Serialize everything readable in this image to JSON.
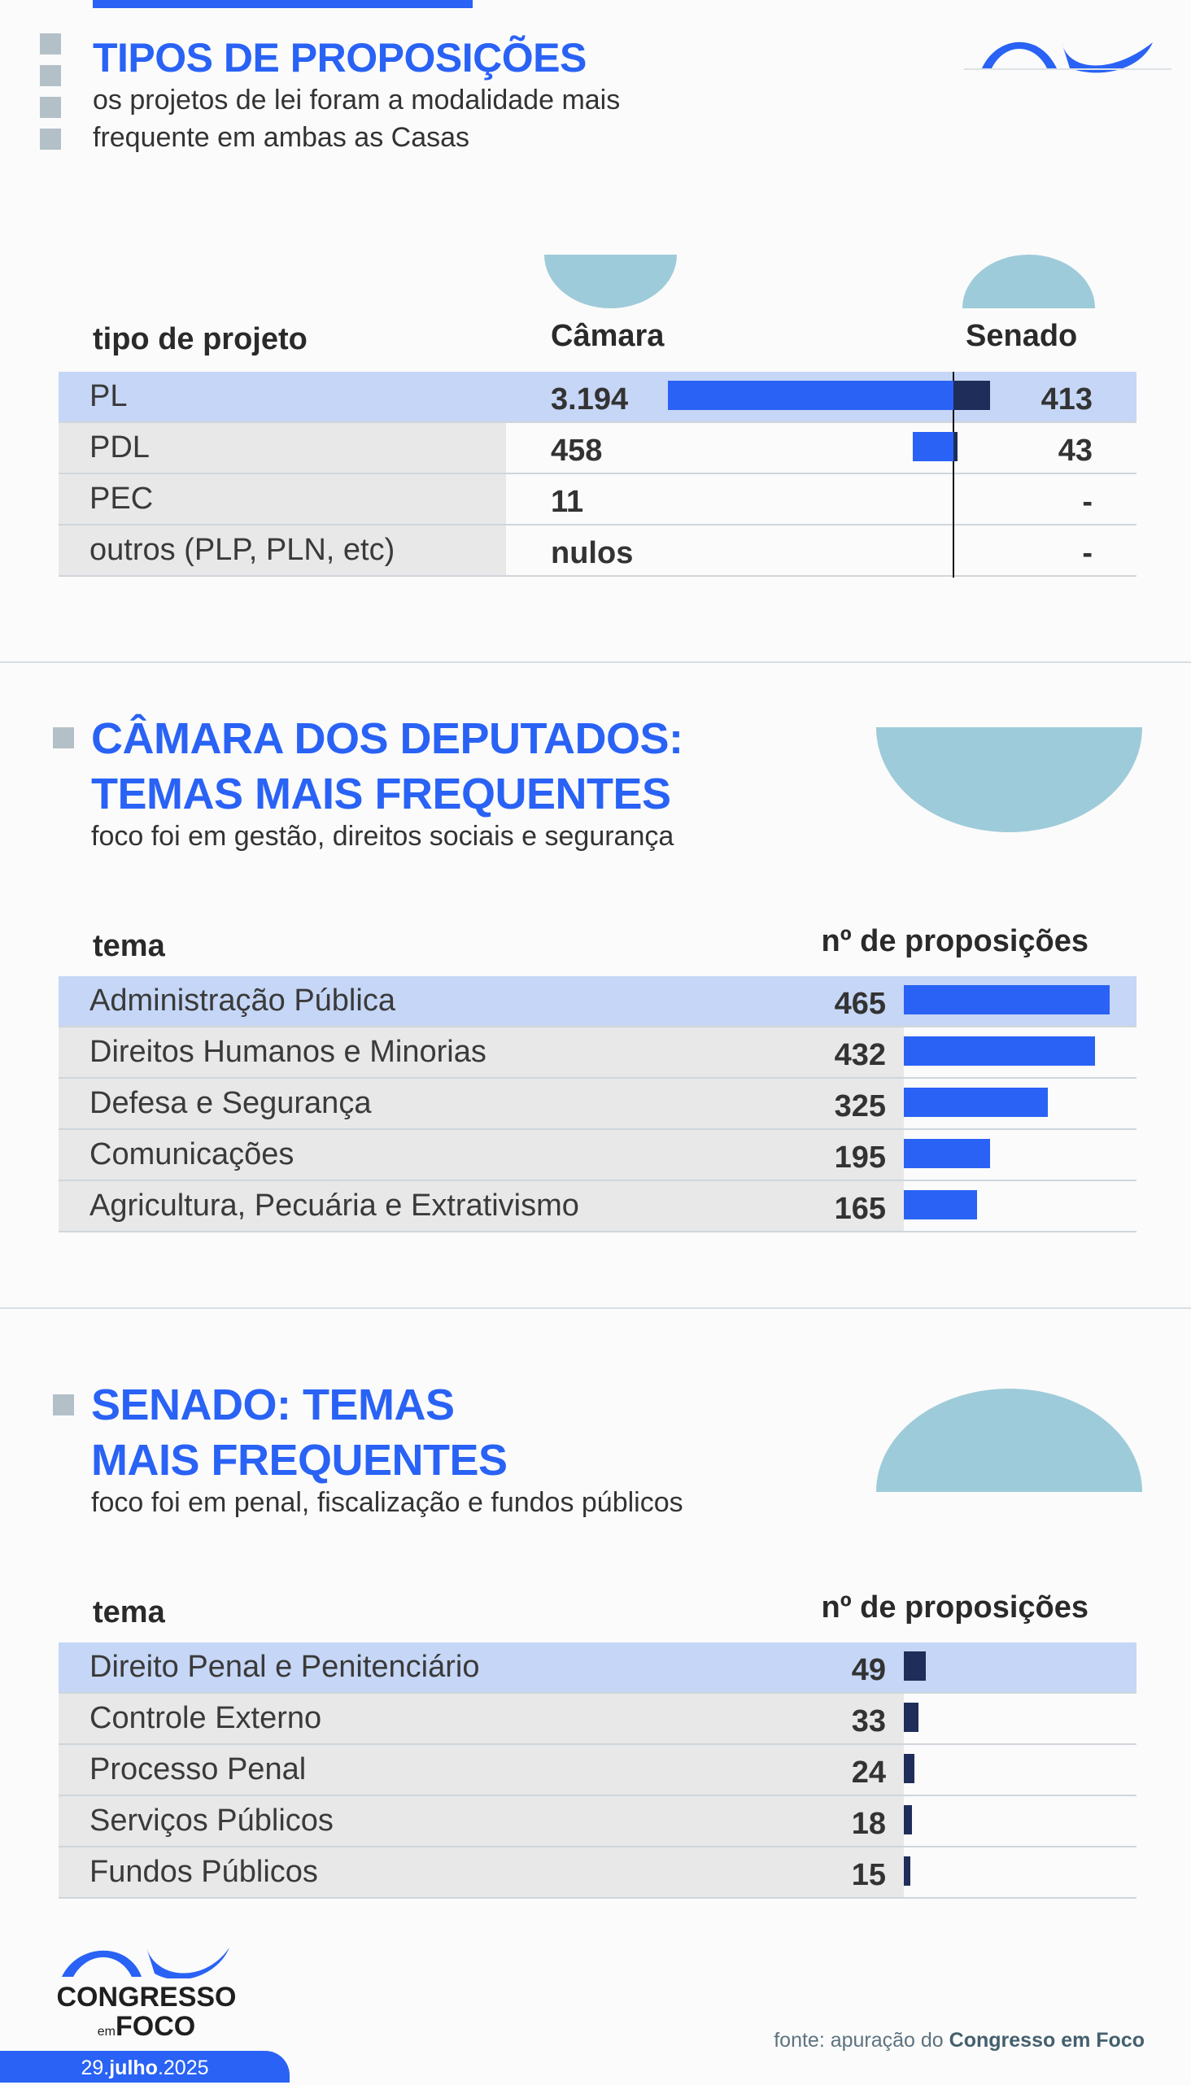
{
  "colors": {
    "accent": "#2962f5",
    "senado_bar": "#1f2d5a",
    "highlight": "#c6d6f6",
    "semicircle": "#9ecbd9"
  },
  "section1": {
    "title": "TIPOS DE PROPOSIÇÕES",
    "subtitle_lines": [
      "os projetos de lei foram a modalidade mais",
      "frequente em ambas as Casas"
    ],
    "headers": {
      "type": "tipo de projeto",
      "camara": "Câmara",
      "senado": "Senado"
    },
    "rows": [
      {
        "label": "PL",
        "camara": "3.194",
        "senado": "413",
        "camara_value": 3194,
        "senado_value": 413
      },
      {
        "label": "PDL",
        "camara": "458",
        "senado": "43",
        "camara_value": 458,
        "senado_value": 43
      },
      {
        "label": "PEC",
        "camara": "11",
        "senado": "-",
        "camara_value": 11,
        "senado_value": 0
      },
      {
        "label": "outros (PLP, PLN, etc)",
        "camara": "nulos",
        "senado": "-",
        "camara_value": 0,
        "senado_value": 0
      }
    ]
  },
  "section2": {
    "title_lines": [
      "CÂMARA DOS DEPUTADOS:",
      "TEMAS MAIS FREQUENTES"
    ],
    "subtitle": "foco foi em gestão, direitos sociais e segurança",
    "headers": {
      "tema": "tema",
      "count": "nº de proposições"
    },
    "rows": [
      {
        "label": "Administração Pública",
        "value": 465
      },
      {
        "label": "Direitos Humanos e Minorias",
        "value": 432
      },
      {
        "label": "Defesa e Segurança",
        "value": 325
      },
      {
        "label": "Comunicações",
        "value": 195
      },
      {
        "label": "Agricultura, Pecuária e Extrativismo",
        "value": 165
      }
    ]
  },
  "section3": {
    "title_lines": [
      "SENADO: TEMAS",
      "MAIS FREQUENTES"
    ],
    "subtitle": "foco foi em penal, fiscalização e fundos públicos",
    "headers": {
      "tema": "tema",
      "count": "nº de proposições"
    },
    "rows": [
      {
        "label": "Direito Penal e Penitenciário",
        "value": 49
      },
      {
        "label": "Controle Externo",
        "value": 33
      },
      {
        "label": "Processo Penal",
        "value": 24
      },
      {
        "label": "Serviços Públicos",
        "value": 18
      },
      {
        "label": "Fundos Públicos",
        "value": 15
      }
    ]
  },
  "chart_data": [
    {
      "type": "bar",
      "title": "TIPOS DE PROPOSIÇÕES",
      "categories": [
        "PL",
        "PDL",
        "PEC",
        "outros (PLP, PLN, etc)"
      ],
      "series": [
        {
          "name": "Câmara",
          "values": [
            3194,
            458,
            11,
            null
          ]
        },
        {
          "name": "Senado",
          "values": [
            413,
            43,
            null,
            null
          ]
        }
      ]
    },
    {
      "type": "bar",
      "title": "CÂMARA DOS DEPUTADOS: TEMAS MAIS FREQUENTES",
      "categories": [
        "Administração Pública",
        "Direitos Humanos e Minorias",
        "Defesa e Segurança",
        "Comunicações",
        "Agricultura, Pecuária e Extrativismo"
      ],
      "values": [
        465,
        432,
        325,
        195,
        165
      ],
      "ylabel": "nº de proposições"
    },
    {
      "type": "bar",
      "title": "SENADO: TEMAS MAIS FREQUENTES",
      "categories": [
        "Direito Penal e Penitenciário",
        "Controle Externo",
        "Processo Penal",
        "Serviços Públicos",
        "Fundos Públicos"
      ],
      "values": [
        49,
        33,
        24,
        18,
        15
      ],
      "ylabel": "nº de proposições"
    }
  ],
  "footer": {
    "logo_text": "CONGRESSO em FOCO",
    "logo_line1": "CONGRESSO",
    "logo_em": "em",
    "logo_foco": "FOCO",
    "source_prefix": "fonte: apuração do ",
    "source_bold": "Congresso em Foco",
    "date_day": "29.",
    "date_month": "julho",
    "date_year": ".2025"
  }
}
